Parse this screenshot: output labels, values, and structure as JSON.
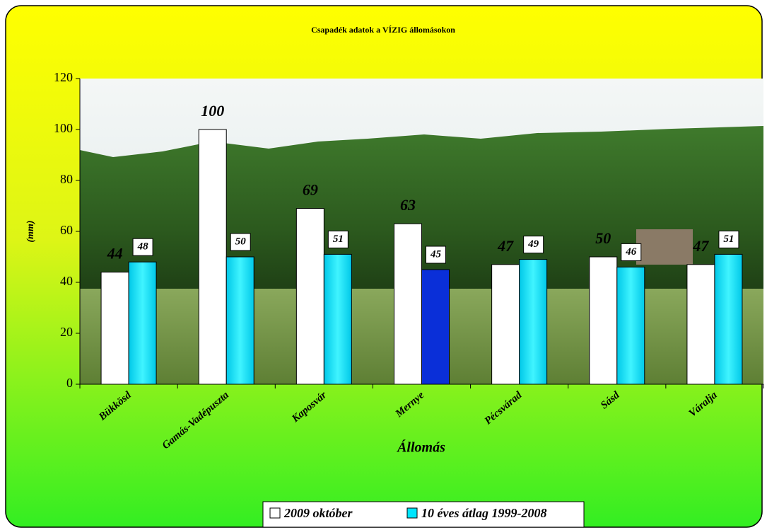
{
  "chart_data": {
    "type": "bar",
    "title": "Csapadék adatok a VÍZIG állomásokon",
    "x_label": "Állomás",
    "y_label": "(mm)",
    "categories": [
      "Bükkösd",
      "Gamás-Vadépuszta",
      "Kaposvár",
      "Mernye",
      "Pécsvárad",
      "Sásd",
      "Váralja"
    ],
    "series": [
      {
        "name": "2009 október",
        "color": "#ffffff",
        "values": [
          44,
          100,
          69,
          63,
          47,
          50,
          47
        ]
      },
      {
        "name": "10 éves átlag 1999-2008",
        "color": "#00e5ff",
        "colors": [
          "#00e5ff",
          "#00e5ff",
          "#00e5ff",
          "#0a2fd8",
          "#00e5ff",
          "#00e5ff",
          "#00e5ff"
        ],
        "values": [
          48,
          50,
          51,
          45,
          49,
          46,
          51
        ]
      }
    ],
    "ylim": [
      0,
      120
    ],
    "yticks": [
      0,
      20,
      40,
      60,
      80,
      100,
      120
    ],
    "legend": "bottom"
  }
}
